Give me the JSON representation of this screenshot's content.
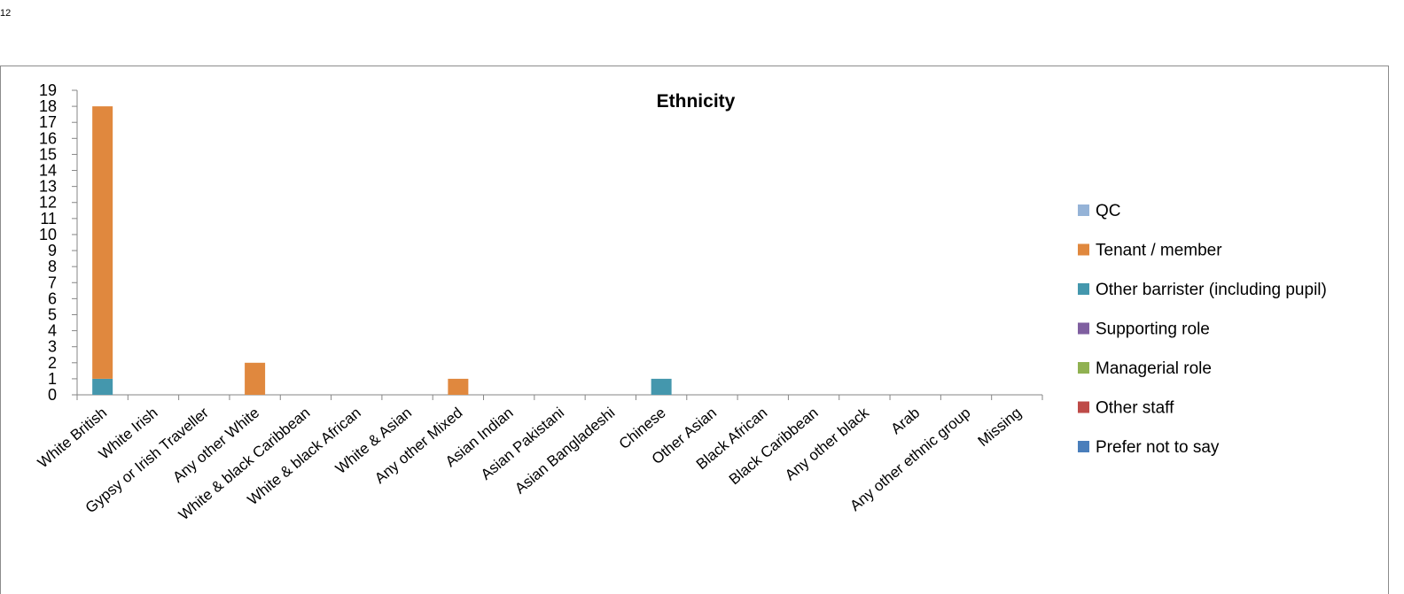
{
  "page": {
    "number": "12"
  },
  "chart_data": {
    "type": "bar",
    "stacked": true,
    "title": "Ethnicity",
    "xlabel": "",
    "ylabel": "",
    "ylim": [
      0,
      19
    ],
    "yticks": [
      0,
      1,
      2,
      3,
      4,
      5,
      6,
      7,
      8,
      9,
      10,
      11,
      12,
      13,
      14,
      15,
      16,
      17,
      18,
      19
    ],
    "grid": false,
    "legend_position": "right",
    "categories": [
      "White British",
      "White Irish",
      "Gypsy or Irish Traveller",
      "Any other White",
      "White & black Caribbean",
      "White & black African",
      "White & Asian",
      "Any other Mixed",
      "Asian Indian",
      "Asian Pakistani",
      "Asian Bangladeshi",
      "Chinese",
      "Other Asian",
      "Black African",
      "Black Caribbean",
      "Any other black",
      "Arab",
      "Any other ethnic group",
      "Missing"
    ],
    "stack_order": [
      "Other barrister (including pupil)",
      "Tenant / member",
      "QC",
      "Supporting role",
      "Managerial role",
      "Other staff",
      "Prefer not to say"
    ],
    "series": [
      {
        "name": "QC",
        "color": "#95B3D7",
        "values": [
          0,
          0,
          0,
          0,
          0,
          0,
          0,
          0,
          0,
          0,
          0,
          0,
          0,
          0,
          0,
          0,
          0,
          0,
          0
        ]
      },
      {
        "name": "Tenant / member",
        "color": "#E0883E",
        "values": [
          17,
          0,
          0,
          2,
          0,
          0,
          0,
          1,
          0,
          0,
          0,
          0,
          0,
          0,
          0,
          0,
          0,
          0,
          0
        ]
      },
      {
        "name": "Other barrister (including pupil)",
        "color": "#4497AD",
        "values": [
          1,
          0,
          0,
          0,
          0,
          0,
          0,
          0,
          0,
          0,
          0,
          1,
          0,
          0,
          0,
          0,
          0,
          0,
          0
        ]
      },
      {
        "name": "Supporting role",
        "color": "#7F5FA0",
        "values": [
          0,
          0,
          0,
          0,
          0,
          0,
          0,
          0,
          0,
          0,
          0,
          0,
          0,
          0,
          0,
          0,
          0,
          0,
          0
        ]
      },
      {
        "name": "Managerial role",
        "color": "#90B151",
        "values": [
          0,
          0,
          0,
          0,
          0,
          0,
          0,
          0,
          0,
          0,
          0,
          0,
          0,
          0,
          0,
          0,
          0,
          0,
          0
        ]
      },
      {
        "name": "Other staff",
        "color": "#BE4B48",
        "values": [
          0,
          0,
          0,
          0,
          0,
          0,
          0,
          0,
          0,
          0,
          0,
          0,
          0,
          0,
          0,
          0,
          0,
          0,
          0
        ]
      },
      {
        "name": "Prefer not to say",
        "color": "#4A7EBB",
        "values": [
          0,
          0,
          0,
          0,
          0,
          0,
          0,
          0,
          0,
          0,
          0,
          0,
          0,
          0,
          0,
          0,
          0,
          0,
          0
        ]
      }
    ]
  }
}
